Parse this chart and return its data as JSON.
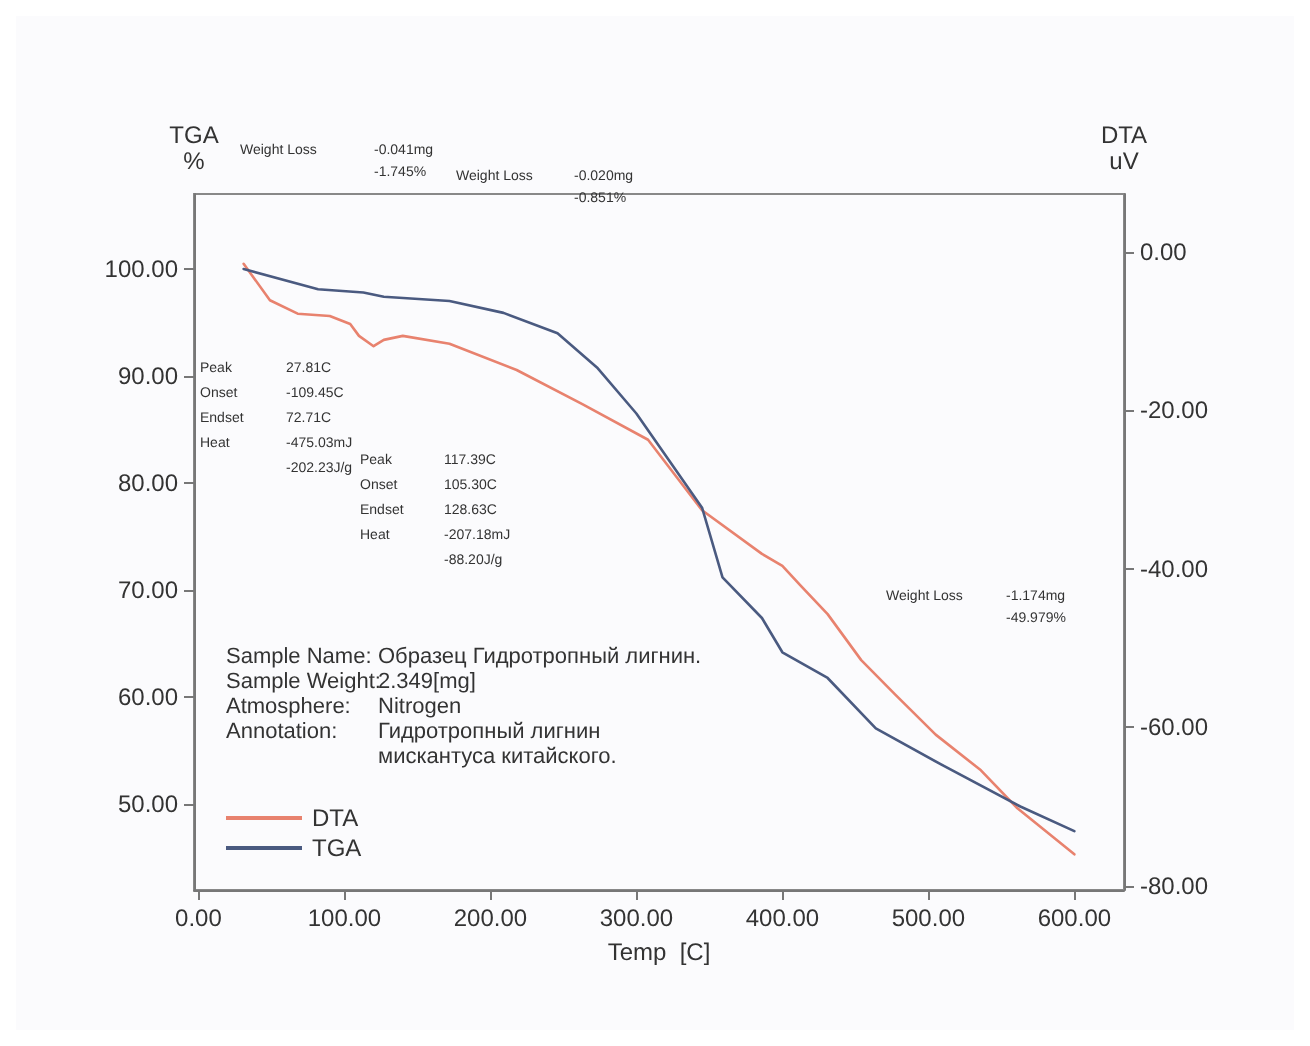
{
  "chart_data": {
    "type": "line",
    "xlabel": "Temp  [C]",
    "ylabel": "TGA\n%",
    "y2label": "DTA\nuV",
    "xlim": [
      -3,
      634
    ],
    "xticks": [
      {
        "value": 0,
        "label": "0.00"
      },
      {
        "value": 100,
        "label": "100.00"
      },
      {
        "value": 200,
        "label": "200.00"
      },
      {
        "value": 300,
        "label": "300.00"
      },
      {
        "value": 400,
        "label": "400.00"
      },
      {
        "value": 500,
        "label": "500.00"
      },
      {
        "value": 600,
        "label": "600.00"
      }
    ],
    "ylim": [
      42,
      107
    ],
    "yticks": [
      {
        "value": 50,
        "label": "50.00"
      },
      {
        "value": 60,
        "label": "60.00"
      },
      {
        "value": 70,
        "label": "70.00"
      },
      {
        "value": 80,
        "label": "80.00"
      },
      {
        "value": 90,
        "label": "90.00"
      },
      {
        "value": 100,
        "label": "100.00"
      }
    ],
    "y2lim": [
      -80.5,
      7.3
    ],
    "y2ticks": [
      {
        "value": -80,
        "label": "-80.00"
      },
      {
        "value": -60,
        "label": "-60.00"
      },
      {
        "value": -40,
        "label": "-40.00"
      },
      {
        "value": -20,
        "label": "-20.00"
      },
      {
        "value": 0,
        "label": "0.00"
      }
    ],
    "grid": false,
    "legend": "bottom left",
    "marker": "none",
    "line_style": "solid",
    "series": [
      {
        "name": "DTA",
        "color": "#e8826e",
        "axis": "y2",
        "x": [
          31,
          49,
          68,
          90,
          104,
          110,
          120,
          127,
          140,
          172,
          218,
          263,
          308,
          345,
          386,
          400,
          413,
          431,
          454,
          477,
          505,
          536,
          561,
          600
        ],
        "values": [
          -1.5,
          -6.1,
          -7.8,
          -8.1,
          -9.1,
          -10.6,
          -11.9,
          -11.1,
          -10.6,
          -11.6,
          -14.9,
          -19.2,
          -23.7,
          -32.6,
          -38.1,
          -39.6,
          -42.2,
          -45.7,
          -51.5,
          -55.8,
          -60.9,
          -65.4,
          -70.2,
          -76
        ]
      },
      {
        "name": "TGA",
        "color": "#4a5a80",
        "x": [
          31,
          82,
          113,
          127,
          172,
          209,
          246,
          273,
          300,
          345,
          359,
          386,
          400,
          431,
          464,
          509,
          563,
          600
        ],
        "values": [
          100,
          98.1,
          97.8,
          97.4,
          97,
          95.9,
          94,
          90.8,
          86.5,
          77.7,
          71.2,
          67.4,
          64.2,
          61.8,
          57.1,
          53.7,
          49.8,
          47.5
        ]
      }
    ],
    "annotations": [
      "Weight Loss",
      "-0.041mg\n-1.745%",
      "Weight Loss",
      "-0.020mg\n-0.851%",
      "Peak\nOnset\nEndset\nHeat",
      "27.81C\n-109.45C\n72.71C\n-475.03mJ\n-202.23J/g",
      "Peak\nOnset\nEndset\nHeat",
      "117.39C\n105.30C\n128.63C\n-207.18mJ\n-88.20J/g",
      "Weight Loss",
      "-1.174mg\n-49.979%",
      "Sample Name:\nSample Weight:\nAtmosphere:\nAnnotation:",
      "Образец Гидротропный лигнин.\n2.349[mg]\nNitrogen\nГидротропный лигнин\nмискантуса китайского."
    ]
  }
}
